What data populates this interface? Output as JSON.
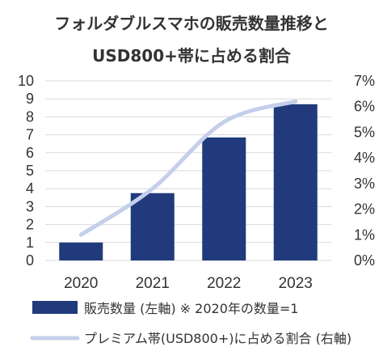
{
  "chart_data": {
    "type": "bar",
    "title_line1": "フォルダブルスマホの販売数量推移と",
    "title_line2": "USD800+帯に占める割合",
    "categories": [
      "2020",
      "2021",
      "2022",
      "2023"
    ],
    "series": [
      {
        "name": "販売数量 (左軸) ※ 2020年の数量=1",
        "type": "bar",
        "axis": "left",
        "color": "#203a7c",
        "values": [
          1.0,
          3.75,
          6.85,
          8.7
        ]
      },
      {
        "name": "プレミアム帯(USD800+)に占める割合 (右軸)",
        "type": "line",
        "axis": "right",
        "color": "#c5cfeb",
        "values": [
          1.0,
          2.8,
          5.4,
          6.2
        ],
        "unit": "%"
      }
    ],
    "y_left": {
      "min": 0,
      "max": 10,
      "ticks": [
        "0",
        "1",
        "2",
        "3",
        "4",
        "5",
        "6",
        "7",
        "8",
        "9",
        "10"
      ]
    },
    "y_right": {
      "min": 0,
      "max": 7,
      "ticks": [
        "0%",
        "1%",
        "2%",
        "3%",
        "4%",
        "5%",
        "6%",
        "7%"
      ]
    },
    "grid": true,
    "legend_position": "bottom"
  }
}
